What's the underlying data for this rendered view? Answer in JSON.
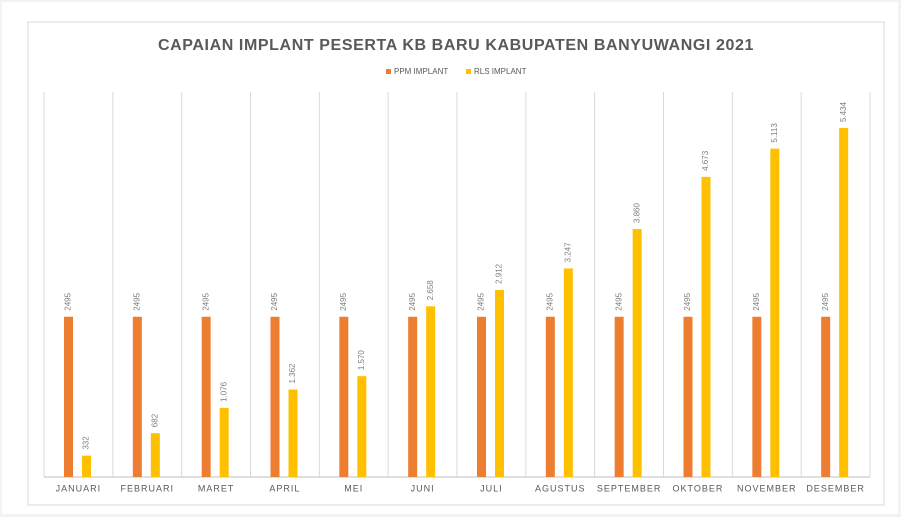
{
  "chart_data": {
    "type": "bar",
    "title": "CAPAIAN IMPLANT PESERTA KB BARU KABUPATEN BANYUWANGI 2021",
    "categories": [
      "JANUARI",
      "FEBRUARI",
      "MARET",
      "APRIL",
      "MEI",
      "JUNI",
      "JULI",
      "AGUSTUS",
      "SEPTEMBER",
      "OKTOBER",
      "NOVEMBER",
      "DESEMBER"
    ],
    "series": [
      {
        "name": "PPM IMPLANT",
        "color": "#ed7d31",
        "values": [
          2495,
          2495,
          2495,
          2495,
          2495,
          2495,
          2495,
          2495,
          2495,
          2495,
          2495,
          2495
        ],
        "value_labels": [
          "2495",
          "2495",
          "2495",
          "2495",
          "2495",
          "2495",
          "2495",
          "2495",
          "2495",
          "2495",
          "2495",
          "2495"
        ]
      },
      {
        "name": "RLS IMPLANT",
        "color": "#ffc000",
        "values": [
          332,
          682,
          1076,
          1362,
          1570,
          2658,
          2912,
          3247,
          3860,
          4673,
          5113,
          5434
        ],
        "value_labels": [
          "332",
          "682",
          "1.076",
          "1.362",
          "1.570",
          "2.658",
          "2.912",
          "3.247",
          "3.860",
          "4.673",
          "5.113",
          "5.434"
        ]
      }
    ],
    "legend": "top"
  }
}
